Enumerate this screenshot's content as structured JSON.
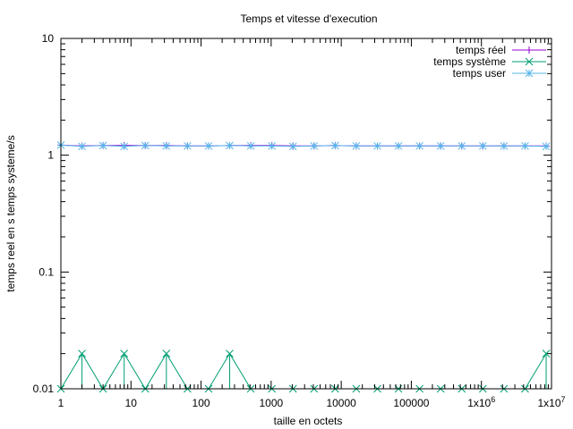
{
  "chart_data": {
    "type": "line",
    "title": "Temps et vitesse d'execution",
    "xlabel": "taille en octets",
    "ylabel": "temps reel en s temps systeme/s",
    "xscale": "log",
    "yscale": "log",
    "xlim": [
      1,
      10000000
    ],
    "ylim": [
      0.01,
      10
    ],
    "grid": false,
    "legend_position": "top-right",
    "x_ticks": [
      {
        "value": 1,
        "label": "1"
      },
      {
        "value": 10,
        "label": "10"
      },
      {
        "value": 100,
        "label": "100"
      },
      {
        "value": 1000,
        "label": "1000"
      },
      {
        "value": 10000,
        "label": "10000"
      },
      {
        "value": 100000,
        "label": "100000"
      },
      {
        "value": 1000000,
        "label": "1x10",
        "sup": "6"
      },
      {
        "value": 10000000,
        "label": "1x10",
        "sup": "7"
      }
    ],
    "y_ticks": [
      {
        "value": 10,
        "label": "10"
      },
      {
        "value": 1,
        "label": "1"
      },
      {
        "value": 0.1,
        "label": "0.1"
      },
      {
        "value": 0.01,
        "label": "0.01"
      }
    ],
    "x": [
      1,
      2,
      4,
      8,
      16,
      32,
      64,
      128,
      256,
      512,
      1024,
      2048,
      4096,
      8192,
      16384,
      32768,
      65536,
      131072,
      262144,
      524288,
      1048576,
      2097152,
      4194304,
      8388608
    ],
    "series": [
      {
        "name": "temps réel",
        "color": "#9400d3",
        "marker": "plus",
        "values": [
          1.22,
          1.2,
          1.21,
          1.21,
          1.21,
          1.21,
          1.2,
          1.2,
          1.21,
          1.21,
          1.21,
          1.2,
          1.2,
          1.21,
          1.2,
          1.2,
          1.2,
          1.2,
          1.2,
          1.2,
          1.2,
          1.2,
          1.2,
          1.2
        ]
      },
      {
        "name": "temps système",
        "color": "#009e73",
        "marker": "cross",
        "impulses": true,
        "values": [
          0.01,
          0.02,
          0.01,
          0.02,
          0.01,
          0.02,
          0.01,
          0.01,
          0.02,
          0.01,
          0.01,
          0.01,
          0.01,
          0.01,
          0.01,
          0.01,
          0.01,
          0.01,
          0.01,
          0.01,
          0.01,
          0.01,
          0.01,
          0.02
        ]
      },
      {
        "name": "temps user",
        "color": "#56b4e9",
        "marker": "star",
        "values": [
          1.22,
          1.19,
          1.21,
          1.19,
          1.21,
          1.2,
          1.2,
          1.2,
          1.21,
          1.2,
          1.2,
          1.19,
          1.2,
          1.21,
          1.2,
          1.2,
          1.2,
          1.2,
          1.2,
          1.2,
          1.2,
          1.2,
          1.2,
          1.19
        ]
      }
    ]
  }
}
